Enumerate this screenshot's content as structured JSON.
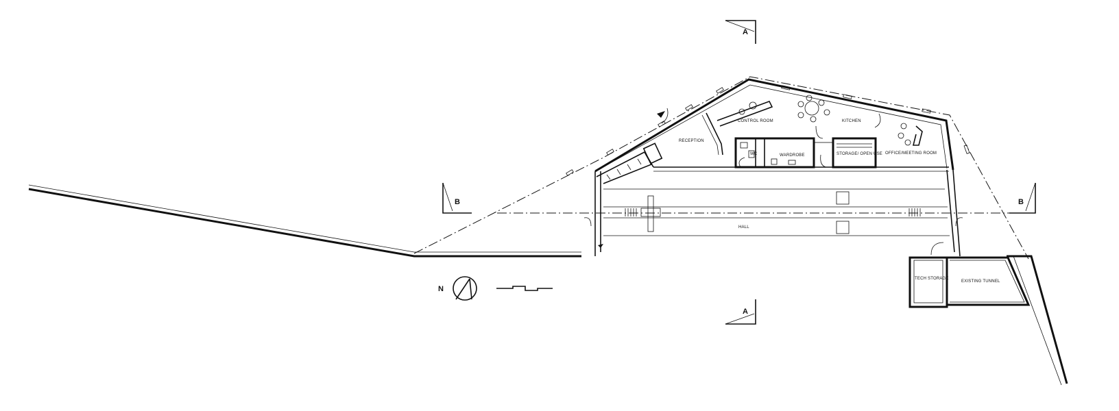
{
  "rooms": {
    "reception": "RECEPTION",
    "control_room": "CONTROL ROOM",
    "kitchen": "KITCHEN",
    "wc": "WC",
    "wardrobe": "WARDROBE",
    "storage_open_use": "STORAGE/ OPEN USE",
    "office_meeting_room": "OFFICE/MEETING ROOM",
    "hall": "HALL",
    "tech_storage": "TECH STORAGE",
    "existing_tunnel": "EXISTING TUNNEL"
  },
  "section_markers": {
    "a_top": "A",
    "a_bottom": "A",
    "b_left": "B",
    "b_right": "B"
  },
  "north_label": "N"
}
